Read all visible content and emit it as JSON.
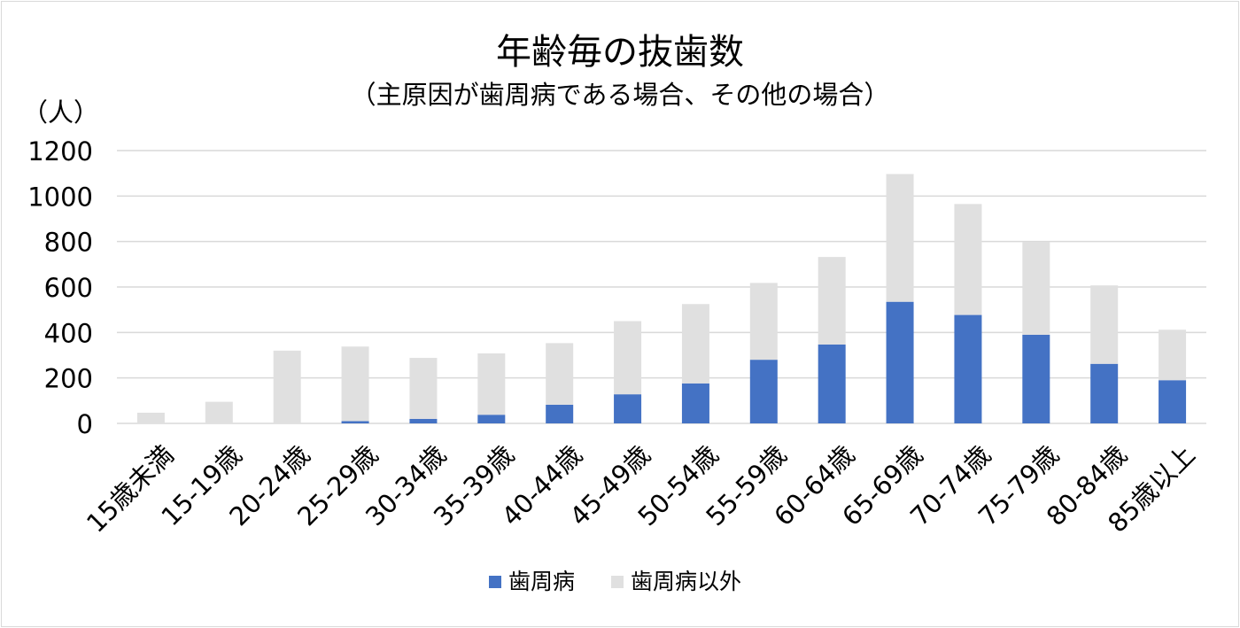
{
  "chart_data": {
    "type": "bar",
    "stacked": true,
    "title": "年齢毎の抜歯数",
    "subtitle": "（主原因が歯周病である場合、その他の場合）",
    "ylabel": "（人）",
    "xlabel": "",
    "ylim": [
      0,
      1200
    ],
    "yticks": [
      0,
      200,
      400,
      600,
      800,
      1000,
      1200
    ],
    "grid": true,
    "legend_position": "bottom",
    "categories": [
      "15歳未満",
      "15-19歳",
      "20-24歳",
      "25-29歳",
      "30-34歳",
      "35-39歳",
      "40-44歳",
      "45-49歳",
      "50-54歳",
      "55-59歳",
      "60-64歳",
      "65-69歳",
      "70-74歳",
      "75-79歳",
      "80-84歳",
      "85歳以上"
    ],
    "series": [
      {
        "name": "歯周病",
        "color": "#4472c4",
        "values": [
          0,
          0,
          0,
          10,
          20,
          38,
          82,
          128,
          176,
          280,
          347,
          535,
          477,
          390,
          262,
          190
        ]
      },
      {
        "name": "歯周病以外",
        "color": "#e0e0e0",
        "values": [
          47,
          95,
          320,
          328,
          268,
          270,
          271,
          322,
          349,
          338,
          385,
          562,
          488,
          408,
          345,
          222
        ]
      }
    ]
  }
}
